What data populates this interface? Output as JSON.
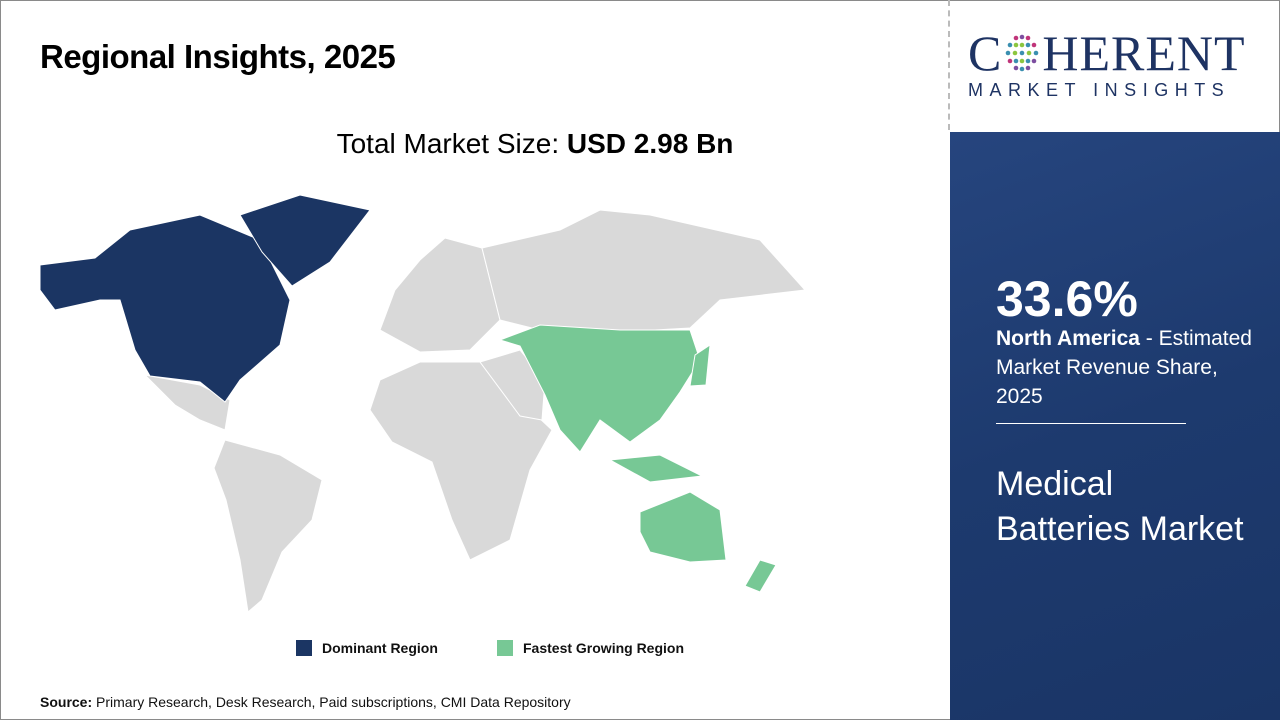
{
  "header": {
    "title": "Regional Insights, 2025"
  },
  "market_size": {
    "label": "Total Market Size:",
    "value": "USD 2.98 Bn"
  },
  "map": {
    "colors": {
      "dominant": "#1b3563",
      "fastest": "#77c895",
      "other": "#d9d9d9"
    },
    "dominant_region": "North America",
    "fastest_growing_region": "Asia Pacific"
  },
  "legend": {
    "dominant": "Dominant Region",
    "fastest": "Fastest Growing Region"
  },
  "source": {
    "label": "Source:",
    "text": " Primary Research, Desk Research, Paid subscriptions, CMI Data Repository"
  },
  "logo": {
    "name": "COHERENT",
    "tagline": "MARKET INSIGHTS"
  },
  "panel": {
    "share": "33.6%",
    "region": "North America",
    "share_desc": " - Estimated Market Revenue Share, 2025",
    "market_name": "Medical Batteries Market"
  }
}
